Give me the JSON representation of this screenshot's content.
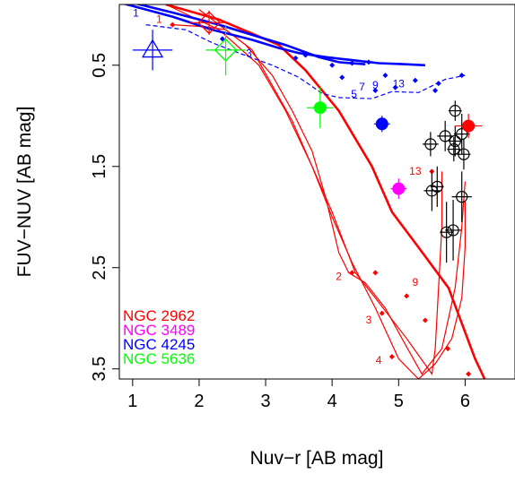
{
  "chart_data": {
    "type": "scatter",
    "xlabel": "Nuv−r [AB mag]",
    "ylabel": "FUV−NUV [AB mag]",
    "xlim": [
      0.8,
      6.75
    ],
    "ylim": [
      3.6,
      -0.1
    ],
    "y_inverted": true,
    "xticks": [
      "1",
      "2",
      "3",
      "4",
      "5",
      "6"
    ],
    "yticks": [
      "0.5",
      "1.5",
      "2.5",
      "3.5"
    ],
    "xtick_values": [
      1,
      2,
      3,
      4,
      5,
      6
    ],
    "ytick_values": [
      0.5,
      1.5,
      2.5,
      3.5
    ],
    "legend": [
      {
        "label": "NGC 2962",
        "color": "#ff0000"
      },
      {
        "label": "NGC 3489",
        "color": "#ff00ff"
      },
      {
        "label": "NGC 4245",
        "color": "#0000ff"
      },
      {
        "label": "NGC 5636",
        "color": "#00ff00"
      }
    ],
    "legend_position": "bottom-left",
    "model_tracks": [
      {
        "color": "#ff0000",
        "style": "thick",
        "points": [
          [
            1.5,
            -0.1
          ],
          [
            2.3,
            0.05
          ],
          [
            3.2,
            0.3
          ],
          [
            3.6,
            0.55
          ],
          [
            4.1,
            0.95
          ],
          [
            4.6,
            1.5
          ],
          [
            4.9,
            1.95
          ],
          [
            5.3,
            2.3
          ],
          [
            5.75,
            2.7
          ],
          [
            6.15,
            3.4
          ],
          [
            6.4,
            3.75
          ]
        ]
      },
      {
        "color": "#ff0000",
        "style": "markers",
        "points": [
          [
            4.65,
            2.55
          ],
          [
            5.12,
            2.78
          ],
          [
            5.4,
            3.02
          ],
          [
            5.74,
            3.3
          ],
          [
            6.05,
            3.55
          ],
          [
            6.2,
            3.75
          ]
        ]
      },
      {
        "color": "#ff0000",
        "style": "thin",
        "points": [
          [
            1.5,
            -0.1
          ],
          [
            2.3,
            0.15
          ],
          [
            2.9,
            0.5
          ],
          [
            3.3,
            0.95
          ],
          [
            3.7,
            1.5
          ],
          [
            4.0,
            1.95
          ],
          [
            4.35,
            2.55
          ],
          [
            4.65,
            2.8
          ],
          [
            5.12,
            3.2
          ],
          [
            5.5,
            3.55
          ],
          [
            5.55,
            3.3
          ],
          [
            5.6,
            2.7
          ],
          [
            5.65,
            2.1
          ],
          [
            5.65,
            1.55
          ]
        ]
      },
      {
        "color": "#ff0000",
        "style": "thin",
        "points": [
          [
            2.0,
            -0.05
          ],
          [
            2.8,
            0.35
          ],
          [
            3.4,
            1.05
          ],
          [
            3.7,
            1.5
          ],
          [
            4.0,
            2.0
          ],
          [
            4.3,
            2.45
          ],
          [
            4.65,
            2.9
          ],
          [
            5.0,
            3.4
          ],
          [
            5.3,
            3.6
          ],
          [
            5.55,
            3.45
          ],
          [
            5.8,
            3.2
          ],
          [
            5.95,
            2.8
          ],
          [
            6.0,
            2.3
          ],
          [
            6.0,
            1.85
          ]
        ]
      },
      {
        "color": "#ff0000",
        "style": "thin",
        "points": [
          [
            1.6,
            0.1
          ],
          [
            2.1,
            0.12
          ],
          [
            2.4,
            0.15
          ],
          [
            2.7,
            0.3
          ],
          [
            3.1,
            0.6
          ],
          [
            3.4,
            0.95
          ],
          [
            3.7,
            1.35
          ],
          [
            3.9,
            1.8
          ],
          [
            4.1,
            2.35
          ],
          [
            4.25,
            2.55
          ],
          [
            4.5,
            2.65
          ],
          [
            4.8,
            2.9
          ],
          [
            5.05,
            3.2
          ],
          [
            5.35,
            3.55
          ],
          [
            5.65,
            3.3
          ],
          [
            5.85,
            2.7
          ],
          [
            5.95,
            2.1
          ],
          [
            6.0,
            1.65
          ]
        ]
      },
      {
        "color": "#ff0000",
        "style": "markers",
        "points": [
          [
            1.6,
            0.1
          ],
          [
            4.3,
            2.55
          ],
          [
            4.75,
            2.95
          ],
          [
            4.9,
            3.38
          ],
          [
            5.5,
            1.55
          ]
        ]
      },
      {
        "color": "#0000ff",
        "style": "thick",
        "points": [
          [
            0.8,
            -0.12
          ],
          [
            1.6,
            0.02
          ],
          [
            2.2,
            0.15
          ],
          [
            2.8,
            0.25
          ],
          [
            3.2,
            0.33
          ],
          [
            3.5,
            0.38
          ],
          [
            3.9,
            0.42
          ],
          [
            4.3,
            0.45
          ],
          [
            4.7,
            0.48
          ],
          [
            5.1,
            0.49
          ],
          [
            5.4,
            0.5
          ]
        ]
      },
      {
        "color": "#0000ff",
        "style": "thick",
        "points": [
          [
            0.8,
            -0.15
          ],
          [
            1.6,
            -0.02
          ],
          [
            2.3,
            0.1
          ],
          [
            2.9,
            0.22
          ],
          [
            3.3,
            0.3
          ],
          [
            3.8,
            0.42
          ],
          [
            4.1,
            0.47
          ],
          [
            4.5,
            0.49
          ]
        ]
      },
      {
        "color": "#0000ff",
        "style": "dashed",
        "points": [
          [
            1.2,
            0.1
          ],
          [
            1.8,
            0.15
          ],
          [
            2.2,
            0.28
          ],
          [
            2.6,
            0.38
          ],
          [
            3.1,
            0.5
          ],
          [
            3.5,
            0.62
          ],
          [
            3.85,
            0.78
          ],
          [
            4.1,
            0.82
          ],
          [
            4.6,
            0.83
          ],
          [
            4.9,
            0.76
          ],
          [
            5.3,
            0.77
          ],
          [
            5.7,
            0.64
          ],
          [
            6.0,
            0.6
          ]
        ]
      },
      {
        "color": "#0000ff",
        "style": "markers",
        "points": [
          [
            2.35,
            0.24
          ],
          [
            3.45,
            0.43
          ],
          [
            3.6,
            0.4
          ],
          [
            4.0,
            0.5
          ],
          [
            4.15,
            0.62
          ],
          [
            4.3,
            0.48
          ],
          [
            4.55,
            0.47
          ],
          [
            4.8,
            0.6
          ],
          [
            4.65,
            0.75
          ],
          [
            4.95,
            0.72
          ],
          [
            5.25,
            0.65
          ],
          [
            5.55,
            0.75
          ],
          [
            5.6,
            0.68
          ],
          [
            5.95,
            0.6
          ]
        ]
      }
    ],
    "track_labels": [
      {
        "text": "1",
        "x": 1.05,
        "y": 0.02,
        "color": "#0000ff"
      },
      {
        "text": "1",
        "x": 1.4,
        "y": 0.08,
        "color": "#ff0000"
      },
      {
        "text": "3",
        "x": 2.75,
        "y": 0.42,
        "color": "#0000ff"
      },
      {
        "text": "5",
        "x": 4.33,
        "y": 0.82,
        "color": "#0000ff"
      },
      {
        "text": "7",
        "x": 4.45,
        "y": 0.75,
        "color": "#0000ff"
      },
      {
        "text": "9",
        "x": 4.65,
        "y": 0.73,
        "color": "#0000ff"
      },
      {
        "text": "13",
        "x": 5.0,
        "y": 0.72,
        "color": "#0000ff"
      },
      {
        "text": "13",
        "x": 5.25,
        "y": 1.58,
        "color": "#ff0000"
      },
      {
        "text": "2",
        "x": 4.1,
        "y": 2.62,
        "color": "#ff0000"
      },
      {
        "text": "9",
        "x": 5.25,
        "y": 2.68,
        "color": "#ff0000"
      },
      {
        "text": "3",
        "x": 4.55,
        "y": 3.05,
        "color": "#ff0000"
      },
      {
        "text": "4",
        "x": 4.7,
        "y": 3.45,
        "color": "#ff0000"
      }
    ],
    "galaxies": [
      {
        "name": "NGC 2962",
        "color": "#ff0000",
        "x": 6.05,
        "y": 1.1,
        "xerr": 0.2,
        "yerr": 0.12,
        "filled": true
      },
      {
        "name": "NGC 3489",
        "color": "#ff00ff",
        "x": 5.0,
        "y": 1.72,
        "xerr": 0.12,
        "yerr": 0.1,
        "filled": true
      },
      {
        "name": "NGC 4245",
        "color": "#0000ff",
        "x": 4.75,
        "y": 1.08,
        "xerr": 0.12,
        "yerr": 0.08,
        "filled": true
      },
      {
        "name": "NGC 5636",
        "color": "#00ff00",
        "x": 3.82,
        "y": 0.92,
        "xerr": 0.2,
        "yerr": 0.2,
        "filled": true
      }
    ],
    "sample_points": [
      {
        "x": 5.85,
        "y": 0.95,
        "xerr": 0.1,
        "yerr": 0.1
      },
      {
        "x": 5.48,
        "y": 1.28,
        "xerr": 0.12,
        "yerr": 0.12
      },
      {
        "x": 5.7,
        "y": 1.2,
        "xerr": 0.12,
        "yerr": 0.15
      },
      {
        "x": 5.85,
        "y": 1.25,
        "xerr": 0.1,
        "yerr": 0.15
      },
      {
        "x": 5.95,
        "y": 1.18,
        "xerr": 0.12,
        "yerr": 0.2
      },
      {
        "x": 5.83,
        "y": 1.33,
        "xerr": 0.1,
        "yerr": 0.12
      },
      {
        "x": 5.98,
        "y": 1.38,
        "xerr": 0.1,
        "yerr": 0.15
      },
      {
        "x": 5.5,
        "y": 1.74,
        "xerr": 0.12,
        "yerr": 0.2
      },
      {
        "x": 5.58,
        "y": 1.7,
        "xerr": 0.1,
        "yerr": 0.2
      },
      {
        "x": 5.95,
        "y": 1.8,
        "xerr": 0.15,
        "yerr": 0.25
      },
      {
        "x": 5.72,
        "y": 2.15,
        "xerr": 0.1,
        "yerr": 0.3
      },
      {
        "x": 5.82,
        "y": 2.13,
        "xerr": 0.12,
        "yerr": 0.3
      }
    ],
    "open_symbols": [
      {
        "color": "#ff0000",
        "shape": "diamond",
        "x": 2.15,
        "y": 0.08,
        "xerr": 0.3,
        "yerr": 0.12
      },
      {
        "color": "#00ff00",
        "shape": "diamond",
        "x": 2.4,
        "y": 0.35,
        "xerr": 0.3,
        "yerr": 0.25
      },
      {
        "color": "#0000ff",
        "shape": "triangle",
        "x": 1.3,
        "y": 0.35,
        "xerr": 0.3,
        "yerr": 0.2
      }
    ]
  }
}
